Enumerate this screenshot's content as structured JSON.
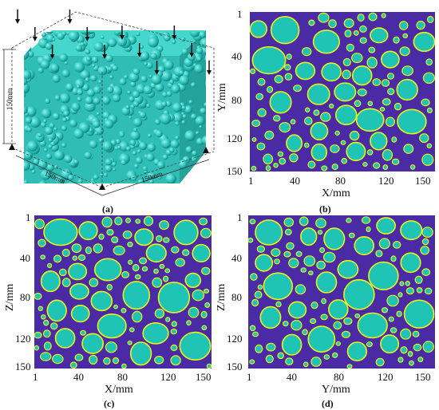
{
  "cube": {
    "caption": "(a)",
    "dimension_labels": [
      "150mm",
      "150mm",
      "150mm"
    ],
    "load_arrow_count": 12,
    "aggregate_color": "#2ec7bf"
  },
  "colors": {
    "matrix": "#4b2aa6",
    "aggregate": "#1fc4b4",
    "interface": "#e9f21a"
  },
  "panels": [
    {
      "id": "b",
      "caption": "(b)",
      "xlabel": "X/mm",
      "ylabel": "Y/mm",
      "xticks": [
        "1",
        "40",
        "80",
        "120",
        "150"
      ],
      "yticks": [
        "1",
        "40",
        "80",
        "120",
        "150"
      ]
    },
    {
      "id": "c",
      "caption": "(c)",
      "xlabel": "X/mm",
      "ylabel": "Z/mm",
      "xticks": [
        "1",
        "40",
        "80",
        "120",
        "150"
      ],
      "yticks": [
        "1",
        "40",
        "80",
        "120",
        "150"
      ]
    },
    {
      "id": "d",
      "caption": "(d)",
      "xlabel": "Y/mm",
      "ylabel": "Z/mm",
      "xticks": [
        "1",
        "40",
        "80",
        "120",
        "150"
      ],
      "yticks": [
        "1",
        "40",
        "80",
        "120",
        "150"
      ]
    }
  ]
}
